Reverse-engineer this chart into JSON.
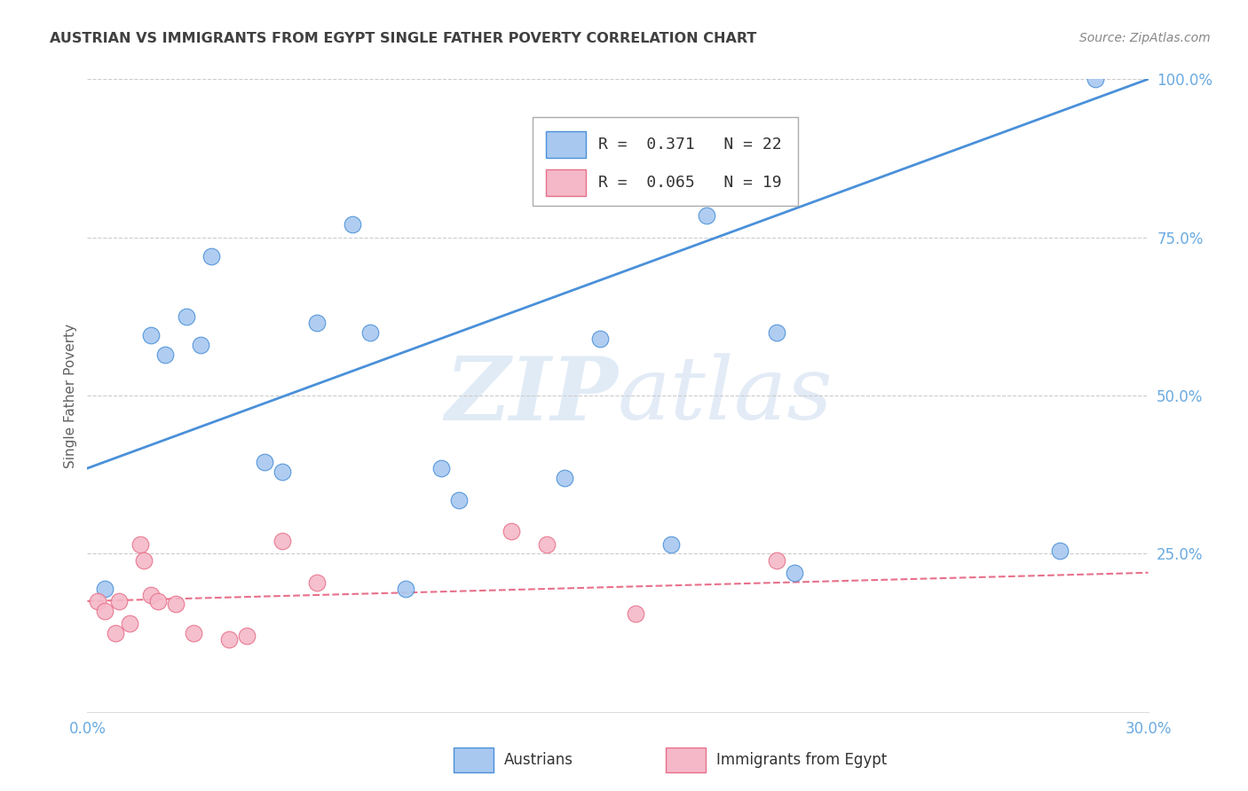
{
  "title": "AUSTRIAN VS IMMIGRANTS FROM EGYPT SINGLE FATHER POVERTY CORRELATION CHART",
  "source": "Source: ZipAtlas.com",
  "ylabel": "Single Father Poverty",
  "x_min": 0.0,
  "x_max": 0.3,
  "y_min": 0.0,
  "y_max": 1.0,
  "x_ticks": [
    0.0,
    0.05,
    0.1,
    0.15,
    0.2,
    0.25,
    0.3
  ],
  "x_tick_labels": [
    "0.0%",
    "",
    "",
    "",
    "",
    "",
    "30.0%"
  ],
  "y_tick_labels_right": [
    "100.0%",
    "75.0%",
    "50.0%",
    "25.0%"
  ],
  "y_ticks_right": [
    1.0,
    0.75,
    0.5,
    0.25
  ],
  "legend_r1": "R =  0.371",
  "legend_n1": "N = 22",
  "legend_r2": "R =  0.065",
  "legend_n2": "N = 19",
  "color_blue": "#A8C8F0",
  "color_pink": "#F4B8C8",
  "line_blue": "#4A90D9",
  "line_pink": "#E8708A",
  "watermark_zip": "ZIP",
  "watermark_atlas": "atlas",
  "grid_color": "#CCCCCC",
  "bg_color": "#FFFFFF",
  "title_color": "#404040",
  "axis_tick_color": "#6AAAE0",
  "ylabel_color": "#606060",
  "legend_label_1": "Austrians",
  "legend_label_2": "Immigrants from Egypt",
  "blue_scatter_x": [
    0.005,
    0.018,
    0.022,
    0.028,
    0.032,
    0.035,
    0.05,
    0.055,
    0.065,
    0.075,
    0.08,
    0.09,
    0.1,
    0.105,
    0.135,
    0.145,
    0.165,
    0.175,
    0.195,
    0.2,
    0.275,
    0.285
  ],
  "blue_scatter_y": [
    0.195,
    0.595,
    0.565,
    0.625,
    0.58,
    0.72,
    0.395,
    0.38,
    0.615,
    0.77,
    0.6,
    0.195,
    0.385,
    0.335,
    0.37,
    0.59,
    0.265,
    0.785,
    0.6,
    0.22,
    0.255,
    1.0
  ],
  "pink_scatter_x": [
    0.003,
    0.005,
    0.008,
    0.009,
    0.012,
    0.015,
    0.016,
    0.018,
    0.02,
    0.025,
    0.03,
    0.04,
    0.045,
    0.055,
    0.065,
    0.12,
    0.13,
    0.155,
    0.195
  ],
  "pink_scatter_y": [
    0.175,
    0.16,
    0.125,
    0.175,
    0.14,
    0.265,
    0.24,
    0.185,
    0.175,
    0.17,
    0.125,
    0.115,
    0.12,
    0.27,
    0.205,
    0.285,
    0.265,
    0.155,
    0.24
  ],
  "blue_line_x": [
    0.0,
    0.3
  ],
  "blue_line_y": [
    0.385,
    1.0
  ],
  "pink_line_x": [
    0.0,
    0.3
  ],
  "pink_line_y": [
    0.175,
    0.22
  ],
  "source_color": "#888888"
}
